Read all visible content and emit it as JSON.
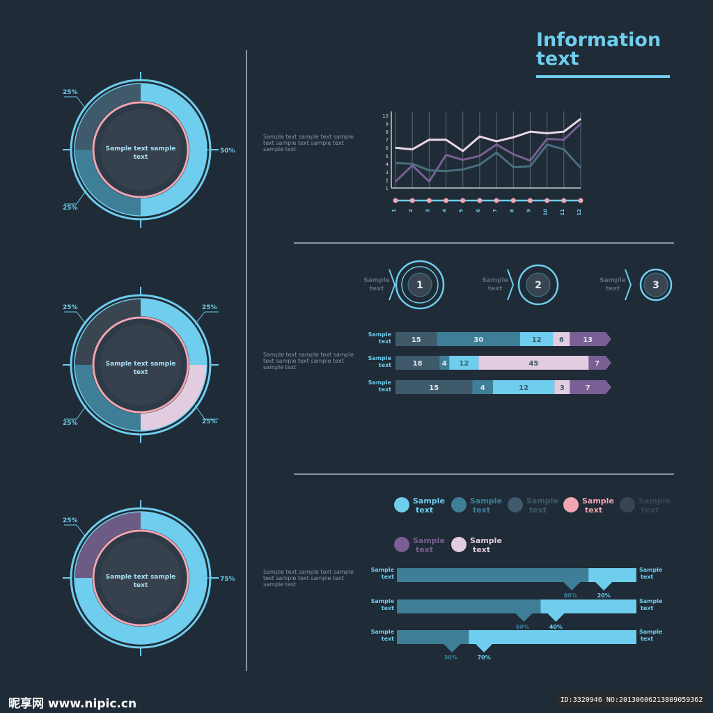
{
  "header": {
    "title_line1": "Information",
    "title_line2": "text"
  },
  "paragraph_text": "Sample text sample text sample text sample text sample text sample text",
  "donuts": [
    {
      "center": "Sample text sample text",
      "segments": [
        {
          "value": 50,
          "color": "#6fcdee"
        },
        {
          "value": 25,
          "color": "#3e7f97"
        },
        {
          "value": 25,
          "color": "#3f5a6a"
        }
      ],
      "labels": [
        {
          "text": "25%",
          "pos": "top-left"
        },
        {
          "text": "50%",
          "pos": "right"
        },
        {
          "text": "25%",
          "pos": "bottom-left"
        }
      ]
    },
    {
      "center": "Sample text sample text",
      "segments": [
        {
          "value": 25,
          "color": "#6fcdee"
        },
        {
          "value": 25,
          "color": "#e2cde0"
        },
        {
          "value": 25,
          "color": "#3e7f97"
        },
        {
          "value": 25,
          "color": "#3a4552"
        }
      ],
      "labels": [
        {
          "text": "25%",
          "pos": "top-left"
        },
        {
          "text": "25%",
          "pos": "top-right"
        },
        {
          "text": "25%",
          "pos": "bottom-left"
        },
        {
          "text": "25%",
          "pos": "bottom-right"
        }
      ]
    },
    {
      "center": "Sample text sample text",
      "segments": [
        {
          "value": 75,
          "color": "#6fcdee"
        },
        {
          "value": 25,
          "color": "#6c5b84"
        }
      ],
      "labels": [
        {
          "text": "25%",
          "pos": "top-left"
        },
        {
          "text": "75%",
          "pos": "right"
        }
      ]
    }
  ],
  "chart_data": [
    {
      "type": "line",
      "x_ticks": [
        "1",
        "2",
        "3",
        "4",
        "5",
        "6",
        "7",
        "8",
        "9",
        "10",
        "11",
        "12"
      ],
      "y_ticks": [
        "1",
        "2",
        "3",
        "4",
        "5",
        "6",
        "7",
        "8",
        "9",
        "10"
      ],
      "ylim": [
        1,
        10
      ],
      "series": [
        {
          "values": [
            6.0,
            5.8,
            7.0,
            7.0,
            5.6,
            7.4,
            6.8,
            7.3,
            8.0,
            7.8,
            8.0,
            9.6
          ],
          "color": "#e9d8e7"
        },
        {
          "values": [
            1.8,
            3.8,
            1.8,
            5.1,
            4.5,
            5.0,
            6.4,
            5.2,
            4.4,
            7.1,
            7.0,
            9.0
          ],
          "color": "#7a5f94"
        },
        {
          "values": [
            4.1,
            4.0,
            3.2,
            3.1,
            3.3,
            3.9,
            5.4,
            3.6,
            3.7,
            6.4,
            5.8,
            3.5
          ],
          "color": "#4a6e82"
        }
      ]
    },
    {
      "type": "bar",
      "orientation": "horizontal",
      "stacked": true,
      "categories": [
        "Sample text",
        "Sample text",
        "Sample text"
      ],
      "series": [
        {
          "values": [
            15,
            18,
            15
          ],
          "color": "#3f5a6a"
        },
        {
          "values": [
            30,
            4,
            4
          ],
          "color": "#3e7f97"
        },
        {
          "values": [
            12,
            12,
            12
          ],
          "color": "#6fcdee"
        },
        {
          "values": [
            6,
            45,
            3
          ],
          "color": "#e2cde0"
        },
        {
          "values": [
            13,
            7,
            7
          ],
          "color": "#7a5f94"
        }
      ]
    },
    {
      "type": "bar",
      "orientation": "horizontal",
      "stacked": true,
      "categories_left": [
        "Sample text",
        "Sample text",
        "Sample text"
      ],
      "categories_right": [
        "Sample text",
        "Sample text",
        "Sample text"
      ],
      "series": [
        {
          "values": [
            80,
            60,
            30
          ],
          "labels": [
            "80%",
            "60%",
            "30%"
          ],
          "color": "#3e7f97"
        },
        {
          "values": [
            20,
            40,
            70
          ],
          "labels": [
            "20%",
            "40%",
            "70%"
          ],
          "color": "#6fcdee"
        }
      ]
    }
  ],
  "steps": [
    {
      "label": "Sample text",
      "number": "1"
    },
    {
      "label": "Sample text",
      "number": "2"
    },
    {
      "label": "Sample text",
      "number": "3"
    }
  ],
  "legend": [
    {
      "text": "Sample text",
      "color": "#6fcdee"
    },
    {
      "text": "Sample text",
      "color": "#3e7f97"
    },
    {
      "text": "Sample text",
      "color": "#3f5a6a"
    },
    {
      "text": "Sample text",
      "color": "#f2a6b2"
    },
    {
      "text": "Sample text",
      "color": "#3a4552"
    },
    {
      "text": "Sample text",
      "color": "#7a5f94"
    },
    {
      "text": "Sample text",
      "color": "#e2cde0"
    }
  ],
  "footer": {
    "left": "昵享网 www.nipic.cn",
    "right": "ID:3320946 NO:20130606213809059362"
  }
}
